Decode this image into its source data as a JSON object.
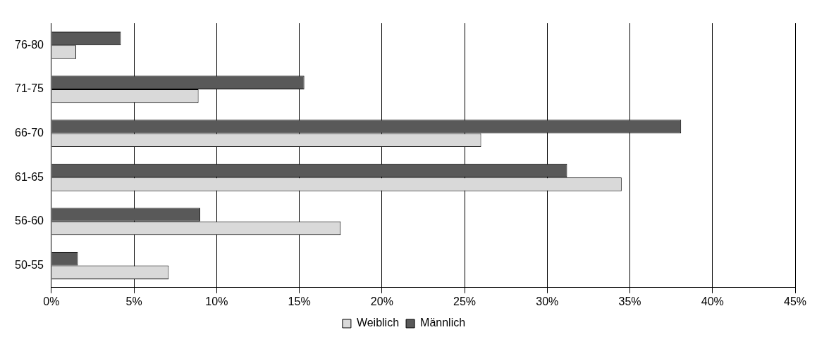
{
  "chart_data": {
    "type": "bar",
    "orientation": "horizontal",
    "categories": [
      "76-80",
      "71-75",
      "66-70",
      "61-65",
      "56-60",
      "50-55"
    ],
    "series": [
      {
        "name": "Weiblich",
        "color": "#d9d9d9",
        "values": [
          1.5,
          8.9,
          26.0,
          34.5,
          17.5,
          7.1
        ]
      },
      {
        "name": "Männlich",
        "color": "#595959",
        "values": [
          4.2,
          15.3,
          38.1,
          31.2,
          9.0,
          1.6
        ]
      }
    ],
    "xlim": [
      0,
      45
    ],
    "xticks": [
      {
        "value": 0,
        "label": "0%"
      },
      {
        "value": 5,
        "label": "5%"
      },
      {
        "value": 10,
        "label": "10%"
      },
      {
        "value": 15,
        "label": "15%"
      },
      {
        "value": 20,
        "label": "20%"
      },
      {
        "value": 25,
        "label": "25%"
      },
      {
        "value": 30,
        "label": "30%"
      },
      {
        "value": 35,
        "label": "35%"
      },
      {
        "value": 40,
        "label": "40%"
      },
      {
        "value": 45,
        "label": "45%"
      }
    ],
    "grid": "x",
    "legend": "bottom"
  }
}
